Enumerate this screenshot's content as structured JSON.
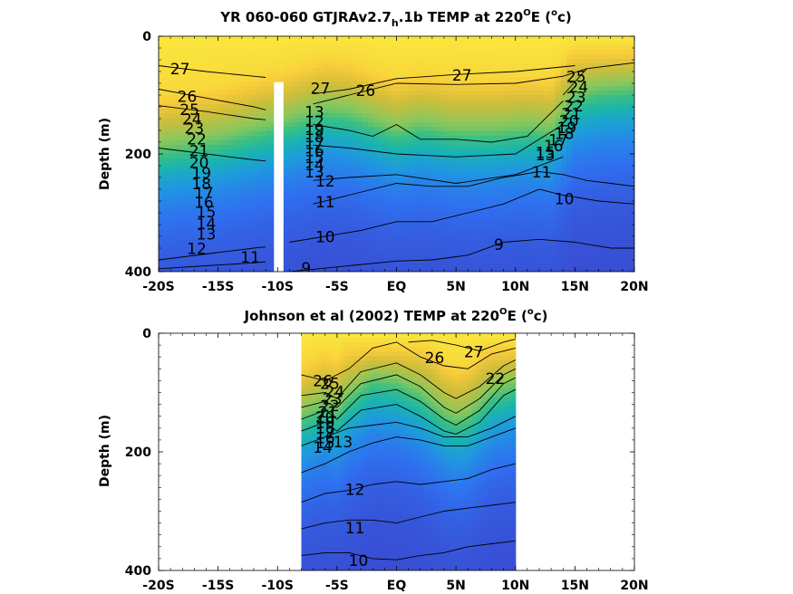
{
  "chart_data": [
    {
      "type": "contour",
      "title": {
        "parts": [
          "YR 060-060 GTJRAv2.7",
          "h",
          ".1b TEMP at 220",
          "O",
          "E (",
          "o",
          "c)"
        ]
      },
      "ylabel": "Depth (m)",
      "xlim": [
        -20,
        20
      ],
      "ylim": [
        400,
        0
      ],
      "x_ticks": [
        -20,
        -15,
        -10,
        -5,
        0,
        5,
        10,
        15,
        20
      ],
      "x_tick_labels": [
        "-20S",
        "-15S",
        "-10S",
        "-5S",
        "EQ",
        "5N",
        "10N",
        "15N",
        "20N"
      ],
      "y_ticks": [
        0,
        200,
        400
      ],
      "y_tick_labels": [
        "0",
        "200",
        "400"
      ],
      "colormap": [
        "#3a4ad0",
        "#2f70f0",
        "#1f98e0",
        "#19b4b0",
        "#3fc07e",
        "#8ec75a",
        "#cfbd3a",
        "#f8cc3a",
        "#f9e93d"
      ],
      "data_gap": {
        "x": [
          -10.3,
          -9.5
        ],
        "depth": [
          78,
          400
        ]
      },
      "thermocline": {
        "x": [
          -20,
          -15,
          -10,
          -6,
          -4,
          -2,
          0,
          2,
          5,
          8,
          11,
          13,
          15,
          17,
          20
        ],
        "z": [
          215,
          205,
          190,
          130,
          110,
          100,
          95,
          100,
          105,
          110,
          110,
          110,
          95,
          80,
          70
        ],
        "t20_depth": [
          190,
          175,
          150,
          125,
          130,
          145,
          160,
          150,
          160,
          160,
          155,
          160,
          100,
          90,
          85
        ]
      },
      "contours": [
        {
          "level": 27,
          "x": [
            -20,
            -16,
            -12,
            -11
          ],
          "depth": [
            50,
            60,
            68,
            70
          ]
        },
        {
          "level": 27,
          "x": [
            -7,
            -4,
            0,
            5,
            10,
            15
          ],
          "depth": [
            98,
            90,
            72,
            65,
            60,
            50
          ]
        },
        {
          "level": 26,
          "x": [
            -20,
            -16,
            -12,
            -11
          ],
          "depth": [
            90,
            105,
            120,
            125
          ]
        },
        {
          "level": 26,
          "x": [
            -7,
            -4,
            0,
            5,
            10,
            14,
            16
          ],
          "depth": [
            115,
            100,
            80,
            82,
            80,
            68,
            55
          ]
        },
        {
          "level": 25,
          "x": [
            -20,
            -16,
            -12,
            -11
          ],
          "depth": [
            118,
            128,
            140,
            142
          ]
        },
        {
          "level": 25,
          "x": [
            14,
            16,
            18,
            20
          ],
          "depth": [
            100,
            55,
            50,
            45
          ]
        },
        {
          "level": 20,
          "x": [
            -20,
            -16,
            -12,
            -11
          ],
          "depth": [
            190,
            200,
            210,
            212
          ]
        },
        {
          "level": 20,
          "x": [
            -7,
            -4,
            -2,
            0,
            2,
            5,
            8,
            11,
            14
          ],
          "depth": [
            150,
            160,
            170,
            150,
            175,
            175,
            180,
            170,
            110
          ]
        },
        {
          "level": 15,
          "x": [
            -7,
            -4,
            0,
            5,
            10,
            14
          ],
          "depth": [
            185,
            190,
            200,
            205,
            200,
            150
          ]
        },
        {
          "level": 12,
          "x": [
            -20,
            -16,
            -12,
            -11
          ],
          "depth": [
            380,
            370,
            360,
            358
          ]
        },
        {
          "level": 12,
          "x": [
            -7,
            -4,
            0,
            5,
            10,
            14
          ],
          "depth": [
            245,
            240,
            235,
            250,
            235,
            205
          ]
        },
        {
          "level": 11,
          "x": [
            -20,
            -16,
            -12,
            -11
          ],
          "depth": [
            395,
            390,
            385,
            383
          ]
        },
        {
          "level": 11,
          "x": [
            -7,
            -4,
            0,
            3,
            6,
            9,
            12,
            14,
            16,
            18,
            20
          ],
          "depth": [
            285,
            270,
            250,
            255,
            255,
            240,
            230,
            235,
            245,
            250,
            255
          ]
        },
        {
          "level": 10,
          "x": [
            -9,
            -6,
            -3,
            0,
            3,
            6,
            9,
            12,
            14,
            17,
            20
          ],
          "depth": [
            350,
            340,
            330,
            315,
            315,
            300,
            285,
            260,
            270,
            280,
            285
          ]
        },
        {
          "level": 9,
          "x": [
            -9,
            -4,
            0,
            3,
            6,
            9,
            12,
            15,
            18,
            20
          ],
          "depth": [
            400,
            390,
            382,
            380,
            372,
            350,
            345,
            350,
            360,
            360
          ]
        }
      ],
      "contour_labels": [
        {
          "text": "27",
          "x": -18.2,
          "depth": 57
        },
        {
          "text": "26",
          "x": -17.6,
          "depth": 104
        },
        {
          "text": "25",
          "x": -17.4,
          "depth": 126
        },
        {
          "text": "24",
          "x": -17.2,
          "depth": 142
        },
        {
          "text": "23",
          "x": -17.0,
          "depth": 158
        },
        {
          "text": "22",
          "x": -16.8,
          "depth": 176
        },
        {
          "text": "21",
          "x": -16.6,
          "depth": 196
        },
        {
          "text": "20",
          "x": -16.6,
          "depth": 216
        },
        {
          "text": "19",
          "x": -16.4,
          "depth": 234
        },
        {
          "text": "18",
          "x": -16.4,
          "depth": 252
        },
        {
          "text": "17",
          "x": -16.2,
          "depth": 268
        },
        {
          "text": "16",
          "x": -16.2,
          "depth": 284
        },
        {
          "text": "15",
          "x": -16.0,
          "depth": 300
        },
        {
          "text": "14",
          "x": -16.0,
          "depth": 320
        },
        {
          "text": "13",
          "x": -16.0,
          "depth": 338
        },
        {
          "text": "12",
          "x": -16.8,
          "depth": 362
        },
        {
          "text": "11",
          "x": -12.3,
          "depth": 377
        },
        {
          "text": "27",
          "x": -6.4,
          "depth": 90
        },
        {
          "text": "26",
          "x": -2.6,
          "depth": 94
        },
        {
          "text": "27",
          "x": 5.5,
          "depth": 68
        },
        {
          "text": "25",
          "x": 15.1,
          "depth": 70
        },
        {
          "text": "24",
          "x": 15.3,
          "depth": 88
        },
        {
          "text": "23",
          "x": 15.1,
          "depth": 105
        },
        {
          "text": "22",
          "x": 14.9,
          "depth": 120
        },
        {
          "text": "21",
          "x": 14.7,
          "depth": 133
        },
        {
          "text": "20",
          "x": 14.5,
          "depth": 145
        },
        {
          "text": "19",
          "x": 14.3,
          "depth": 157
        },
        {
          "text": "18",
          "x": 14.1,
          "depth": 167
        },
        {
          "text": "17",
          "x": 13.6,
          "depth": 178
        },
        {
          "text": "16",
          "x": 13.2,
          "depth": 188
        },
        {
          "text": "15",
          "x": 12.5,
          "depth": 199
        },
        {
          "text": "13",
          "x": 12.5,
          "depth": 203
        },
        {
          "text": "11",
          "x": 12.2,
          "depth": 232
        },
        {
          "text": "10",
          "x": 14.1,
          "depth": 278
        },
        {
          "text": "13",
          "x": -6.9,
          "depth": 130
        },
        {
          "text": "12",
          "x": -6.9,
          "depth": 146
        },
        {
          "text": "19",
          "x": -6.9,
          "depth": 160
        },
        {
          "text": "18",
          "x": -6.9,
          "depth": 172
        },
        {
          "text": "17",
          "x": -6.9,
          "depth": 184
        },
        {
          "text": "16",
          "x": -6.9,
          "depth": 196
        },
        {
          "text": "15",
          "x": -6.9,
          "depth": 208
        },
        {
          "text": "14",
          "x": -6.9,
          "depth": 220
        },
        {
          "text": "13",
          "x": -6.9,
          "depth": 232
        },
        {
          "text": "12",
          "x": -6.0,
          "depth": 248
        },
        {
          "text": "11",
          "x": -6.0,
          "depth": 283
        },
        {
          "text": "10",
          "x": -6.0,
          "depth": 342
        },
        {
          "text": "9",
          "x": 8.6,
          "depth": 355
        },
        {
          "text": "9",
          "x": -7.6,
          "depth": 395
        }
      ]
    },
    {
      "type": "contour",
      "title": {
        "parts": [
          "Johnson et al (2002) TEMP at 220",
          "O",
          "E (",
          "o",
          "c)"
        ]
      },
      "ylabel": "Depth (m)",
      "xlim": [
        -20,
        20
      ],
      "ylim": [
        400,
        0
      ],
      "data_extent_x": [
        -8,
        10
      ],
      "x_ticks": [
        -20,
        -15,
        -10,
        -5,
        0,
        5,
        10,
        15,
        20
      ],
      "x_tick_labels": [
        "-20S",
        "-15S",
        "-10S",
        "-5S",
        "EQ",
        "5N",
        "10N",
        "15N",
        "20N"
      ],
      "y_ticks": [
        0,
        200,
        400
      ],
      "y_tick_labels": [
        "0",
        "200",
        "400"
      ],
      "colormap": [
        "#3a4ad0",
        "#2f70f0",
        "#1f98e0",
        "#19b4b0",
        "#3fc07e",
        "#8ec75a",
        "#cfbd3a",
        "#f8cc3a",
        "#f9e93d"
      ],
      "thermocline": {
        "x": [
          -8,
          -6,
          -5,
          -4,
          -2,
          0,
          2,
          4,
          5,
          6,
          8,
          10
        ],
        "z": [
          75,
          75,
          80,
          65,
          40,
          35,
          50,
          90,
          100,
          95,
          60,
          45
        ],
        "t20_depth": [
          140,
          120,
          130,
          105,
          75,
          80,
          100,
          135,
          145,
          140,
          100,
          85
        ]
      },
      "contours": [
        {
          "level": 27,
          "x": [
            1,
            3,
            5,
            7,
            9,
            10
          ],
          "depth": [
            15,
            12,
            20,
            30,
            15,
            10
          ]
        },
        {
          "level": 26,
          "x": [
            -8,
            -6,
            -4,
            -2,
            0,
            2,
            4,
            6,
            8,
            10
          ],
          "depth": [
            70,
            80,
            60,
            25,
            15,
            40,
            55,
            60,
            35,
            25
          ]
        },
        {
          "level": 24,
          "x": [
            -8,
            -6,
            -5,
            -3,
            0,
            2,
            4,
            5,
            7,
            9,
            10
          ],
          "depth": [
            105,
            100,
            110,
            65,
            50,
            70,
            100,
            110,
            90,
            55,
            45
          ]
        },
        {
          "level": 22,
          "x": [
            -8,
            -6,
            -5,
            -3,
            0,
            2,
            4,
            5,
            7,
            9,
            10
          ],
          "depth": [
            125,
            115,
            125,
            85,
            70,
            90,
            125,
            135,
            110,
            70,
            60
          ]
        },
        {
          "level": 20,
          "x": [
            -8,
            -6,
            -5,
            -3,
            0,
            2,
            4,
            5,
            7,
            9,
            10
          ],
          "depth": [
            145,
            130,
            145,
            105,
            95,
            115,
            145,
            155,
            130,
            85,
            75
          ]
        },
        {
          "level": 17,
          "x": [
            -8,
            -6,
            -5,
            -3,
            0,
            2,
            4,
            5,
            7,
            9,
            10
          ],
          "depth": [
            165,
            150,
            165,
            130,
            120,
            140,
            165,
            170,
            150,
            105,
            95
          ]
        },
        {
          "level": 14,
          "x": [
            -8,
            -6,
            -4,
            -2,
            0,
            2,
            4,
            6,
            8,
            10
          ],
          "depth": [
            190,
            175,
            160,
            155,
            150,
            160,
            175,
            175,
            160,
            140
          ]
        },
        {
          "level": 13,
          "x": [
            -8,
            -6,
            -4,
            -2,
            0,
            2,
            4,
            6,
            8,
            10
          ],
          "depth": [
            235,
            220,
            200,
            185,
            175,
            180,
            190,
            190,
            175,
            160
          ]
        },
        {
          "level": 12,
          "x": [
            -8,
            -6,
            -4,
            -2,
            0,
            2,
            4,
            6,
            8,
            10
          ],
          "depth": [
            285,
            270,
            265,
            255,
            250,
            255,
            250,
            245,
            230,
            220
          ]
        },
        {
          "level": 11,
          "x": [
            -8,
            -6,
            -4,
            -2,
            0,
            2,
            4,
            6,
            8,
            10
          ],
          "depth": [
            330,
            320,
            315,
            315,
            320,
            310,
            300,
            295,
            290,
            285
          ]
        },
        {
          "level": 10,
          "x": [
            -8,
            -6,
            -4,
            -2,
            0,
            2,
            4,
            6,
            8,
            10
          ],
          "depth": [
            375,
            370,
            370,
            380,
            382,
            375,
            370,
            360,
            355,
            350
          ]
        }
      ],
      "contour_labels": [
        {
          "text": "27",
          "x": 6.5,
          "depth": 33
        },
        {
          "text": "26",
          "x": 3.2,
          "depth": 43
        },
        {
          "text": "26",
          "x": -6.2,
          "depth": 82
        },
        {
          "text": "25",
          "x": -5.6,
          "depth": 86
        },
        {
          "text": "24",
          "x": -5.2,
          "depth": 100
        },
        {
          "text": "23",
          "x": -5.4,
          "depth": 112
        },
        {
          "text": "22",
          "x": -5.6,
          "depth": 124
        },
        {
          "text": "21",
          "x": -5.8,
          "depth": 134
        },
        {
          "text": "20",
          "x": -6.0,
          "depth": 143
        },
        {
          "text": "19",
          "x": -6.0,
          "depth": 152
        },
        {
          "text": "18",
          "x": -6.0,
          "depth": 161
        },
        {
          "text": "17",
          "x": -6.0,
          "depth": 170
        },
        {
          "text": "16",
          "x": -6.0,
          "depth": 178
        },
        {
          "text": "15",
          "x": -6.0,
          "depth": 186
        },
        {
          "text": "14",
          "x": -6.2,
          "depth": 194
        },
        {
          "text": "13",
          "x": -4.5,
          "depth": 185
        },
        {
          "text": "12",
          "x": -3.5,
          "depth": 265
        },
        {
          "text": "11",
          "x": -3.5,
          "depth": 330
        },
        {
          "text": "10",
          "x": -3.2,
          "depth": 385
        },
        {
          "text": "22",
          "x": 8.3,
          "depth": 78
        }
      ]
    }
  ]
}
